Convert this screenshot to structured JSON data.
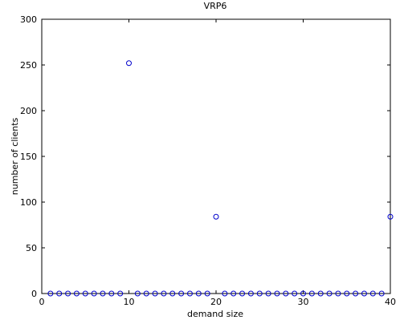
{
  "chart_data": {
    "type": "scatter",
    "title": "VRP6",
    "xlabel": "demand size",
    "ylabel": "number of clients",
    "xlim": [
      0,
      40
    ],
    "ylim": [
      0,
      300
    ],
    "xticks": [
      0,
      10,
      20,
      30,
      40
    ],
    "yticks": [
      0,
      50,
      100,
      150,
      200,
      250,
      300
    ],
    "grid": false,
    "marker": "circle-open",
    "marker_color": "#0000cc",
    "series": [
      {
        "x": [
          1,
          2,
          3,
          4,
          5,
          6,
          7,
          8,
          9,
          10,
          11,
          12,
          13,
          14,
          15,
          16,
          17,
          18,
          19,
          20,
          21,
          22,
          23,
          24,
          25,
          26,
          27,
          28,
          29,
          30,
          31,
          32,
          33,
          34,
          35,
          36,
          37,
          38,
          39,
          40
        ],
        "y": [
          0,
          0,
          0,
          0,
          0,
          0,
          0,
          0,
          0,
          252,
          0,
          0,
          0,
          0,
          0,
          0,
          0,
          0,
          0,
          84,
          0,
          0,
          0,
          0,
          0,
          0,
          0,
          0,
          0,
          0,
          0,
          0,
          0,
          0,
          0,
          0,
          0,
          0,
          0,
          84
        ]
      }
    ]
  }
}
